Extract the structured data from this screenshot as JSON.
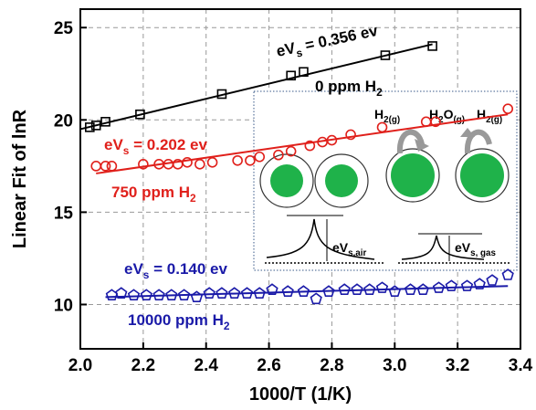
{
  "chart_data": {
    "type": "scatter",
    "xlabel": "1000/T (1/K)",
    "ylabel": "Linear Fit of lnR",
    "xlim": [
      2.0,
      3.4
    ],
    "ylim": [
      7.6,
      26
    ],
    "xticks": [
      {
        "value": 2.0,
        "label": "2.0"
      },
      {
        "value": 2.2,
        "label": "2.2"
      },
      {
        "value": 2.4,
        "label": "2.4"
      },
      {
        "value": 2.6,
        "label": "2.6"
      },
      {
        "value": 2.8,
        "label": "2.8"
      },
      {
        "value": 3.0,
        "label": "3.0"
      },
      {
        "value": 3.2,
        "label": "3.2"
      },
      {
        "value": 3.4,
        "label": "3.4"
      }
    ],
    "yticks": [
      10,
      15,
      20,
      25
    ],
    "grid": true,
    "series": [
      {
        "color": "#000000",
        "marker": "square",
        "x": [
          2.03,
          2.05,
          2.08,
          2.19,
          2.45,
          2.67,
          2.71,
          2.97,
          3.12
        ],
        "values": [
          19.6,
          19.7,
          19.9,
          20.3,
          21.4,
          22.4,
          22.6,
          23.5,
          24.0
        ],
        "fit": {
          "x": [
            2.0,
            3.12
          ],
          "values": [
            19.5,
            24.1
          ]
        },
        "energy_label": [
          "eV",
          "s",
          " = 0.356 ev"
        ],
        "conc_label": [
          "0 ppm H",
          "2"
        ]
      },
      {
        "color": "#e0201b",
        "marker": "circle",
        "x": [
          2.05,
          2.08,
          2.1,
          2.2,
          2.25,
          2.28,
          2.31,
          2.34,
          2.38,
          2.42,
          2.5,
          2.54,
          2.57,
          2.63,
          2.67,
          2.73,
          2.77,
          2.8,
          2.86,
          2.96,
          3.1,
          3.13,
          3.36
        ],
        "values": [
          17.5,
          17.5,
          17.5,
          17.6,
          17.6,
          17.6,
          17.6,
          17.7,
          17.6,
          17.7,
          17.8,
          17.8,
          18.0,
          18.1,
          18.3,
          18.6,
          18.8,
          18.9,
          19.2,
          19.6,
          19.9,
          19.9,
          20.6
        ],
        "fit": {
          "x": [
            2.05,
            3.36
          ],
          "values": [
            17.1,
            20.3
          ]
        },
        "energy_label": [
          "eV",
          "s",
          " = 0.202 ev"
        ],
        "conc_label": [
          "750 ppm H",
          "2"
        ]
      },
      {
        "color": "#1a1aa8",
        "marker": "pentagon",
        "x": [
          2.1,
          2.13,
          2.17,
          2.21,
          2.25,
          2.29,
          2.33,
          2.37,
          2.41,
          2.45,
          2.49,
          2.53,
          2.57,
          2.61,
          2.66,
          2.71,
          2.75,
          2.79,
          2.84,
          2.88,
          2.92,
          2.96,
          3.0,
          3.05,
          3.09,
          3.14,
          3.18,
          3.23,
          3.27,
          3.31,
          3.36
        ],
        "values": [
          10.5,
          10.6,
          10.5,
          10.5,
          10.5,
          10.5,
          10.5,
          10.4,
          10.6,
          10.6,
          10.6,
          10.6,
          10.6,
          10.8,
          10.7,
          10.7,
          10.3,
          10.7,
          10.8,
          10.8,
          10.8,
          10.9,
          10.7,
          10.8,
          10.8,
          10.9,
          11.0,
          11.0,
          11.1,
          11.3,
          11.6
        ],
        "fit": {
          "x": [
            2.08,
            3.36
          ],
          "values": [
            10.4,
            11.0
          ]
        },
        "energy_label": [
          "eV",
          "s",
          " = 0.140 ev"
        ],
        "conc_label": [
          "10000 ppm H",
          "2"
        ]
      }
    ],
    "inset": {
      "labels": [
        [
          "H",
          "2(g)"
        ],
        [
          "H",
          "2",
          "O",
          "(g)"
        ],
        [
          "H",
          "2(g)"
        ],
        [
          "eV",
          "s,air"
        ],
        [
          "eV",
          "s, gas"
        ]
      ]
    }
  }
}
